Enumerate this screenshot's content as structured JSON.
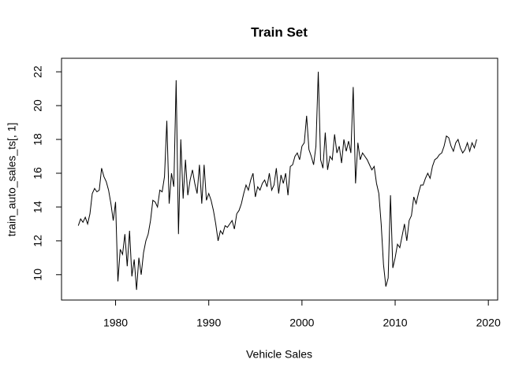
{
  "chart_data": {
    "type": "line",
    "title": "Train Set",
    "x_label": "Vehicle Sales",
    "y_label": "train_auto_sales_ts[, 1]",
    "xlim": [
      1974.2,
      2021.0
    ],
    "ylim": [
      8.5,
      22.8
    ],
    "xticks": [
      1980,
      1990,
      2000,
      2010,
      2020
    ],
    "yticks": [
      10,
      12,
      14,
      16,
      18,
      20,
      22
    ],
    "grid": false,
    "x": [
      1976,
      1976.25,
      1976.5,
      1976.75,
      1977,
      1977.25,
      1977.5,
      1977.75,
      1978,
      1978.25,
      1978.5,
      1978.75,
      1979,
      1979.25,
      1979.5,
      1979.75,
      1980,
      1980.25,
      1980.5,
      1980.75,
      1981,
      1981.25,
      1981.5,
      1981.75,
      1982,
      1982.25,
      1982.5,
      1982.75,
      1983,
      1983.25,
      1983.5,
      1983.75,
      1984,
      1984.25,
      1984.5,
      1984.75,
      1985,
      1985.25,
      1985.5,
      1985.75,
      1986,
      1986.25,
      1986.5,
      1986.75,
      1987,
      1987.25,
      1987.5,
      1987.75,
      1988,
      1988.25,
      1988.5,
      1988.75,
      1989,
      1989.25,
      1989.5,
      1989.75,
      1990,
      1990.25,
      1990.5,
      1990.75,
      1991,
      1991.25,
      1991.5,
      1991.75,
      1992,
      1992.25,
      1992.5,
      1992.75,
      1993,
      1993.25,
      1993.5,
      1993.75,
      1994,
      1994.25,
      1994.5,
      1994.75,
      1995,
      1995.25,
      1995.5,
      1995.75,
      1996,
      1996.25,
      1996.5,
      1996.75,
      1997,
      1997.25,
      1997.5,
      1997.75,
      1998,
      1998.25,
      1998.5,
      1998.75,
      1999,
      1999.25,
      1999.5,
      1999.75,
      2000,
      2000.25,
      2000.5,
      2000.75,
      2001,
      2001.25,
      2001.5,
      2001.75,
      2002,
      2002.25,
      2002.5,
      2002.75,
      2003,
      2003.25,
      2003.5,
      2003.75,
      2004,
      2004.25,
      2004.5,
      2004.75,
      2005,
      2005.25,
      2005.5,
      2005.75,
      2006,
      2006.25,
      2006.5,
      2006.75,
      2007,
      2007.25,
      2007.5,
      2007.75,
      2008,
      2008.25,
      2008.5,
      2008.75,
      2009,
      2009.25,
      2009.5,
      2009.75,
      2010,
      2010.25,
      2010.5,
      2010.75,
      2011,
      2011.25,
      2011.5,
      2011.75,
      2012,
      2012.25,
      2012.5,
      2012.75,
      2013,
      2013.25,
      2013.5,
      2013.75,
      2014,
      2014.25,
      2014.5,
      2014.75,
      2015,
      2015.25,
      2015.5,
      2015.75,
      2016,
      2016.25,
      2016.5,
      2016.75,
      2017,
      2017.25,
      2017.5,
      2017.75,
      2018,
      2018.25,
      2018.5,
      2018.75
    ],
    "series": [
      {
        "color": "#000000",
        "values": [
          12.9,
          13.3,
          13.1,
          13.4,
          13.0,
          13.6,
          14.8,
          15.1,
          14.9,
          15.0,
          16.3,
          15.8,
          15.5,
          15.0,
          14.2,
          13.2,
          14.3,
          9.6,
          11.5,
          11.2,
          12.4,
          10.5,
          12.6,
          9.9,
          10.9,
          9.1,
          11.0,
          10.0,
          11.3,
          12.0,
          12.4,
          13.2,
          14.4,
          14.3,
          14.0,
          15.0,
          14.9,
          15.8,
          19.1,
          14.2,
          16.0,
          15.2,
          21.5,
          12.4,
          18.0,
          14.5,
          16.8,
          14.7,
          15.6,
          16.2,
          15.4,
          14.8,
          16.5,
          14.2,
          16.5,
          14.4,
          14.8,
          14.4,
          13.8,
          13.0,
          12.0,
          12.6,
          12.4,
          12.9,
          12.8,
          13.0,
          13.2,
          12.7,
          13.6,
          13.8,
          14.2,
          14.8,
          15.3,
          15.0,
          15.6,
          16.0,
          14.6,
          15.2,
          15.0,
          15.4,
          15.6,
          15.2,
          16.0,
          15.0,
          15.3,
          16.3,
          14.8,
          15.9,
          15.4,
          16.0,
          14.7,
          16.4,
          16.5,
          17.0,
          17.2,
          16.8,
          17.6,
          17.8,
          19.4,
          17.4,
          17.0,
          16.5,
          17.6,
          22.0,
          16.8,
          16.3,
          18.4,
          16.2,
          17.0,
          16.8,
          18.3,
          17.2,
          17.6,
          16.6,
          18.0,
          17.3,
          17.9,
          17.2,
          21.1,
          15.4,
          17.8,
          16.8,
          17.2,
          17.0,
          16.8,
          16.5,
          16.2,
          16.4,
          15.4,
          14.8,
          13.0,
          10.6,
          9.3,
          9.8,
          14.7,
          10.4,
          11.0,
          11.8,
          11.6,
          12.3,
          13.0,
          12.0,
          13.2,
          13.5,
          14.6,
          14.2,
          14.8,
          15.3,
          15.3,
          15.7,
          16.0,
          15.7,
          16.4,
          16.8,
          16.9,
          17.1,
          17.2,
          17.6,
          18.2,
          18.1,
          17.6,
          17.3,
          17.8,
          18.0,
          17.5,
          17.2,
          17.4,
          17.8,
          17.3,
          17.8,
          17.5,
          18.0
        ]
      }
    ]
  }
}
